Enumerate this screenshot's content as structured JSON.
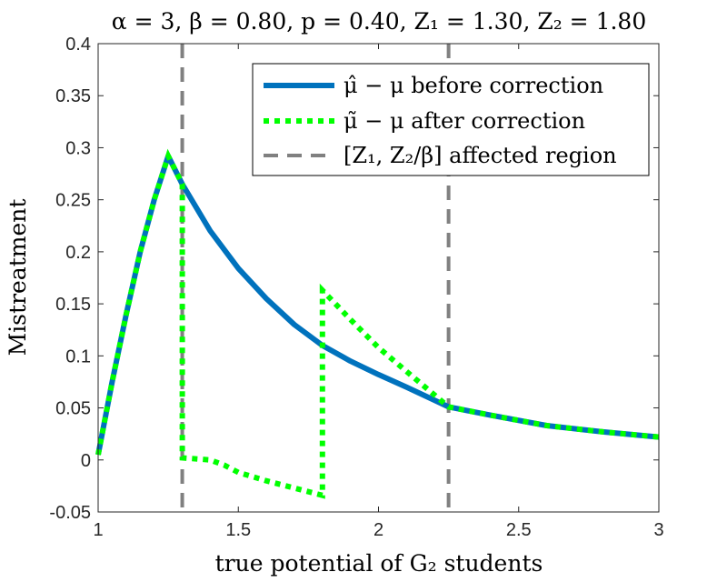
{
  "chart_data": {
    "type": "line",
    "title": "α = 3, β = 0.80, p = 0.40, Z₁ = 1.30, Z₂ = 1.80",
    "xlabel": "true potential of G₂ students",
    "ylabel": "Mistreatment",
    "xlim": [
      1,
      3
    ],
    "ylim": [
      -0.05,
      0.4
    ],
    "grid": false,
    "legend_position": "top-right",
    "xticks": [
      1,
      1.5,
      2,
      2.5,
      3
    ],
    "xtick_labels": [
      "1",
      "1.5",
      "2",
      "2.5",
      "3"
    ],
    "yticks": [
      -0.05,
      0,
      0.05,
      0.1,
      0.15,
      0.2,
      0.25,
      0.3,
      0.35,
      0.4
    ],
    "ytick_labels": [
      "-0.05",
      "0",
      "0.05",
      "0.1",
      "0.15",
      "0.2",
      "0.25",
      "0.3",
      "0.35",
      "0.4"
    ],
    "series": [
      {
        "name": "μ̂ − μ before correction",
        "color": "#0072BD",
        "style": "solid",
        "x": [
          1.0,
          1.05,
          1.1,
          1.15,
          1.2,
          1.25,
          1.3,
          1.4,
          1.5,
          1.6,
          1.7,
          1.8,
          1.9,
          2.0,
          2.1,
          2.25,
          2.4,
          2.6,
          2.8,
          3.0
        ],
        "y": [
          0.005,
          0.075,
          0.14,
          0.2,
          0.25,
          0.292,
          0.265,
          0.22,
          0.184,
          0.155,
          0.13,
          0.11,
          0.095,
          0.082,
          0.07,
          0.051,
          0.043,
          0.033,
          0.027,
          0.022
        ]
      },
      {
        "name": "μ̃ − μ after correction",
        "color": "#00FF00",
        "style": "dotted",
        "x": [
          1.0,
          1.05,
          1.1,
          1.15,
          1.2,
          1.25,
          1.3,
          1.3,
          1.35,
          1.4,
          1.45,
          1.5,
          1.6,
          1.7,
          1.8,
          1.8,
          1.9,
          2.0,
          2.1,
          2.25,
          2.4,
          2.6,
          2.8,
          3.0
        ],
        "y": [
          0.005,
          0.075,
          0.14,
          0.2,
          0.25,
          0.292,
          0.265,
          0.002,
          0.001,
          0.0,
          -0.005,
          -0.012,
          -0.02,
          -0.027,
          -0.034,
          0.163,
          0.135,
          0.108,
          0.085,
          0.051,
          0.043,
          0.033,
          0.027,
          0.022
        ]
      },
      {
        "name": "[Z₁, Z₂/β] affected region",
        "color": "#808080",
        "style": "dashed",
        "vlines": [
          1.3,
          2.25
        ]
      }
    ]
  }
}
